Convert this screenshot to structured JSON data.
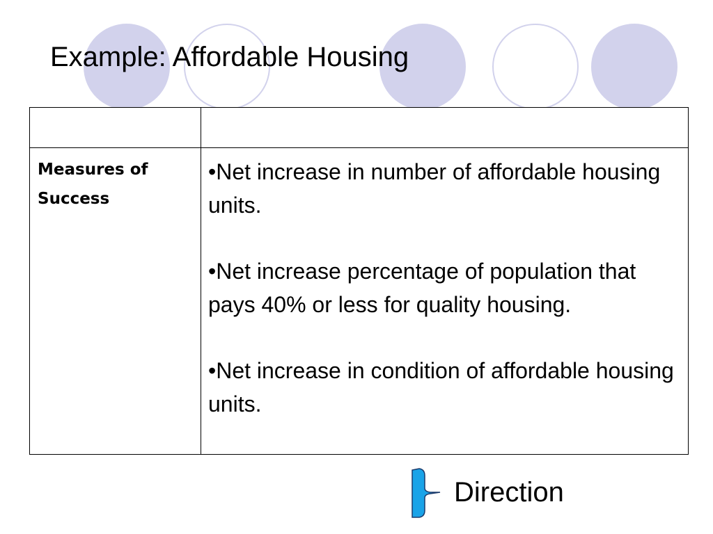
{
  "slide": {
    "title": "Example: Affordable Housing"
  },
  "table": {
    "header_row": [
      "",
      ""
    ],
    "rows": [
      {
        "label": "Measures of Success",
        "bullets": [
          "•Net increase in number of affordable housing units.",
          "•Net increase percentage of population that pays 40% or less for quality housing.",
          "•Net increase in condition of affordable housing units."
        ]
      }
    ]
  },
  "annotation": {
    "label": "Direction",
    "icon": "brace-icon",
    "color": "#1aa3e8"
  },
  "decoration": {
    "circle_color": "#d2d2ec"
  }
}
